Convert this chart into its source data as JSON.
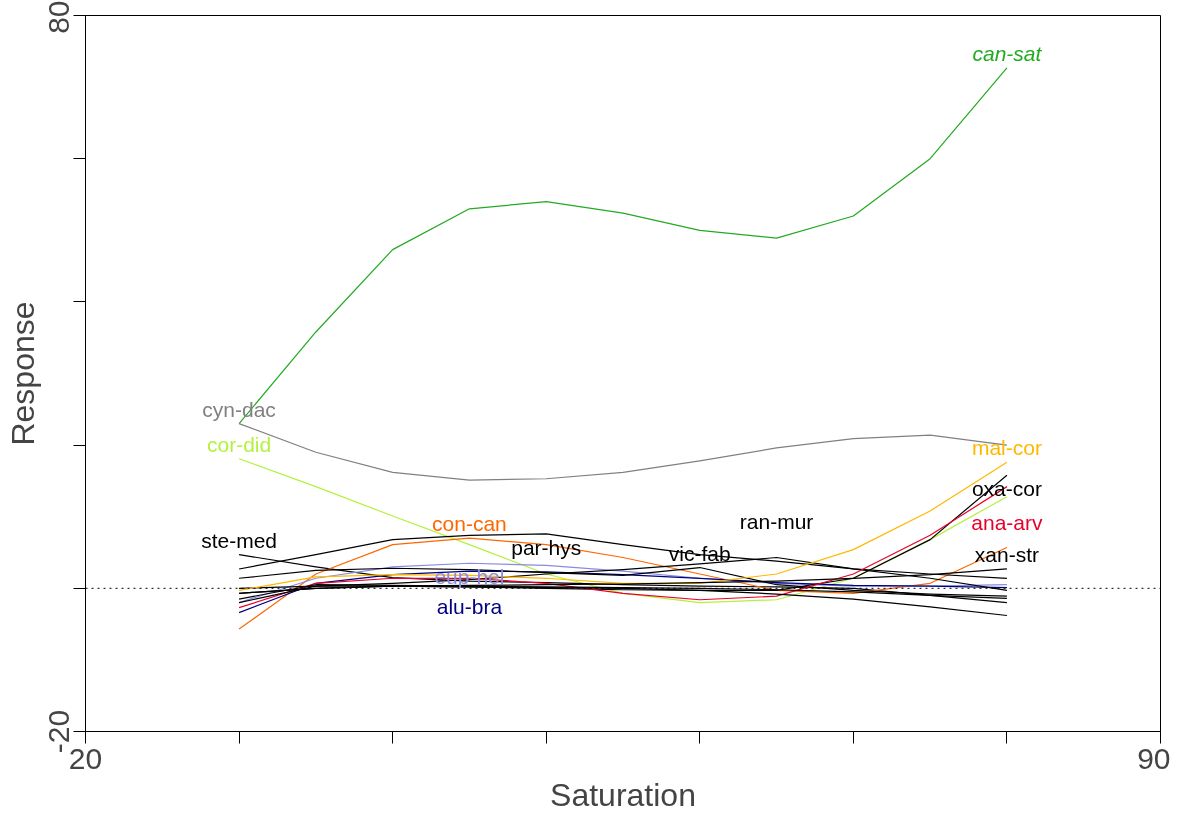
{
  "chart_data": {
    "type": "line",
    "xlabel": "Saturation",
    "ylabel": "Response",
    "x": [
      30,
      35,
      40,
      45,
      50,
      55,
      60,
      65,
      70,
      75,
      80
    ],
    "xlim": [
      20,
      90
    ],
    "ylim": [
      -20,
      80
    ],
    "xticks": [
      20,
      {
        "value": 30,
        "label": null
      },
      {
        "value": 40,
        "label": null
      },
      {
        "value": 50,
        "label": null
      },
      {
        "value": 60,
        "label": null
      },
      {
        "value": 70,
        "label": null
      },
      {
        "value": 80,
        "label": null
      },
      90
    ],
    "yticks": [
      -20,
      {
        "value": 0,
        "label": null
      },
      {
        "value": 20,
        "label": null
      },
      {
        "value": 40,
        "label": null
      },
      {
        "value": 60,
        "label": null
      },
      80
    ],
    "grid": false,
    "ref_lines": [
      {
        "axis": "y",
        "value": 0,
        "label": null,
        "color": "#000000",
        "line_style": "dotted"
      }
    ],
    "series": [
      {
        "name": "can-sat",
        "color": "#22aa22",
        "values": [
          23,
          35.8,
          47.3,
          53,
          54,
          52.4,
          50,
          48.9,
          52,
          60,
          72.7
        ]
      },
      {
        "name": "cyn-dac",
        "color": "#808080",
        "values": [
          23,
          19,
          16.2,
          15.1,
          15.3,
          16.2,
          17.8,
          19.6,
          20.9,
          21.4,
          20
        ]
      },
      {
        "name": "cor-did",
        "color": "#b3f23c",
        "values": [
          18.1,
          14.2,
          10.1,
          6.1,
          2,
          -0.7,
          -2,
          -1.6,
          1.4,
          6.8,
          12.8
        ]
      },
      {
        "name": "ste-med",
        "color": "#000000",
        "values": [
          4.7,
          3,
          1.5,
          1,
          0.8,
          0.5,
          0.3,
          0.2,
          0,
          -1,
          -2
        ]
      },
      {
        "name": "con-can",
        "color": "#ff6600",
        "values": [
          -5.7,
          2,
          6.1,
          7,
          6.1,
          4.3,
          2,
          -0.3,
          -0.7,
          0.7,
          5.7
        ]
      },
      {
        "name": "par-hys",
        "color": "#000000",
        "values": [
          2.7,
          4.7,
          6.8,
          7.4,
          7.6,
          6.1,
          4.7,
          3.8,
          2.7,
          2,
          1.4
        ]
      },
      {
        "name": "eup-hel",
        "color": "#8a8ae6",
        "values": [
          -2,
          1.4,
          3,
          3.5,
          3.2,
          2.4,
          1.4,
          0.7,
          0.3,
          0.3,
          0.5
        ]
      },
      {
        "name": "alu-bra",
        "color": "#000080",
        "values": [
          -3.4,
          0.7,
          1.9,
          2.4,
          2.3,
          1.9,
          1.4,
          0.8,
          0.4,
          0.3,
          0.1
        ]
      },
      {
        "name": "vic-fab",
        "color": "#000000",
        "values": [
          1.4,
          2.5,
          2.8,
          2.6,
          2.2,
          1.8,
          2.9,
          0.5,
          -0.3,
          -0.8,
          -1.1
        ]
      },
      {
        "name": "ran-mur",
        "color": "#000000",
        "values": [
          0,
          0.3,
          0.7,
          1.2,
          2,
          2.6,
          3.4,
          4.3,
          2.7,
          1.4,
          -0.3
        ]
      },
      {
        "name": "mal-cor",
        "color": "#ffb800",
        "values": [
          -0.3,
          1.6,
          1.9,
          1.8,
          1.4,
          0.7,
          0.7,
          2,
          5.4,
          10.8,
          17.6
        ]
      },
      {
        "name": "oxa-cor",
        "color": "#000000",
        "values": [
          -0.7,
          0,
          0.3,
          0.2,
          0,
          -0.2,
          -0.3,
          -0.3,
          1.4,
          6.8,
          15.8
        ]
      },
      {
        "name": "ana-arv",
        "color": "#e8002a",
        "values": [
          -2.7,
          0.7,
          1.4,
          1.4,
          0.7,
          -0.7,
          -1.6,
          -1.1,
          2,
          7.4,
          14.2
        ]
      },
      {
        "name": "xan-str",
        "color": "#000000",
        "values": [
          -0.7,
          0,
          0.3,
          0.4,
          0.5,
          0.6,
          0.8,
          1,
          1.4,
          1.9,
          2.7
        ]
      },
      {
        "color": "#000000",
        "values": [
          -1.5,
          0.5,
          0.4,
          0.3,
          0.2,
          0.1,
          0,
          -0.2,
          -0.5,
          -1,
          -1.4
        ]
      },
      {
        "color": "#000000",
        "values": [
          -2,
          0.3,
          0.3,
          0.2,
          0.1,
          0,
          -0.3,
          -0.8,
          -1.5,
          -2.6,
          -3.8
        ]
      }
    ]
  }
}
